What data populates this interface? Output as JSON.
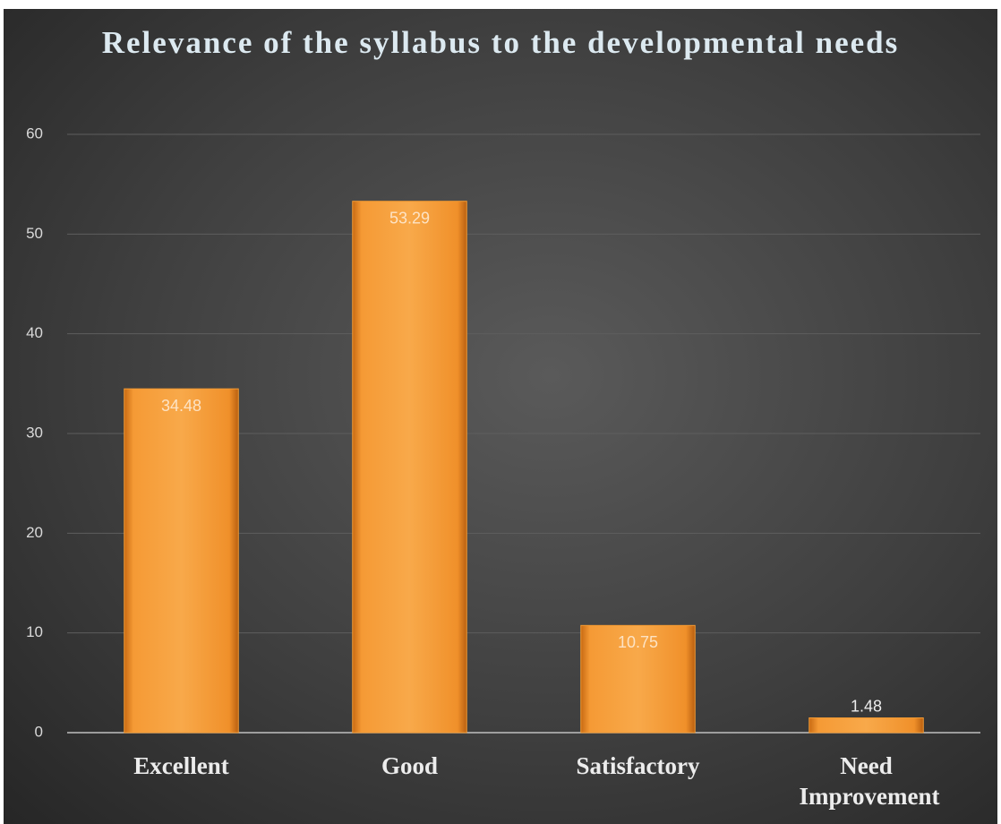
{
  "chart_data": {
    "type": "bar",
    "title": "Relevance of the syllabus to the developmental needs",
    "categories": [
      "Excellent",
      "Good",
      "Satisfactory",
      "Need Improvement"
    ],
    "values": [
      34.48,
      53.29,
      10.75,
      1.48
    ],
    "color": "#f39a32",
    "ylim": [
      0,
      60
    ],
    "yticks": [
      0,
      10,
      20,
      30,
      40,
      50,
      60
    ],
    "grid": true
  }
}
